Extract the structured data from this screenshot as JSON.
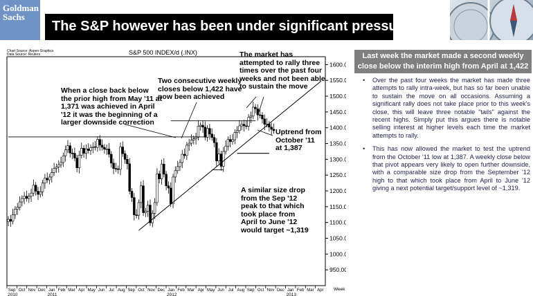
{
  "logo": {
    "line1": "Goldman",
    "line2": "Sachs"
  },
  "slide_title": "The S&P however has been under significant pressure…",
  "panel": {
    "header": "Last week the market made a second weekly close below the interim high from April at 1,422",
    "bullets": [
      "Over the past four weeks the market has made three attempts to rally intra-week, but has so far been unable to sustain the move on all occasions. Assuming a significant rally does not take place prior to this week's close, this will leave three notable \"tails\" against the recent highs. Simply put this argues there is notable selling interest at higher levels each time the market attempts to rally.",
      "This has now allowed the market to test the uptrend from the October '11 low at 1,387. A weekly close below that pivot appears very likely to open further downside, with a comparable size drop from the September '12 high to that which took place from April to June '12 giving a next potential target/support level of ~1,319."
    ]
  },
  "chart_data": {
    "type": "candlestick",
    "title": "S&P 500 INDEX/d (.INX)",
    "source_lines": [
      "Chart Source: Aspen Graphics",
      "Data Source: Reuters"
    ],
    "frequency_label": "Week",
    "ylim": [
      900,
      1625
    ],
    "y_ticks": [
      950,
      1000,
      1050,
      1100,
      1150,
      1200,
      1250,
      1300,
      1350,
      1400,
      1450,
      1500,
      1550,
      1600
    ],
    "y_tick_labels": [
      "950.00",
      "1000.00",
      "1050.00",
      "1100.00",
      "1150.00",
      "1200.00",
      "1250.00",
      "1300.00",
      "1350.00",
      "1400.00",
      "1450.00",
      "1500.00",
      "1550.00",
      "1600.00"
    ],
    "x_months": [
      "Sep",
      "Oct",
      "Nov",
      "Dec",
      "Jan",
      "Feb",
      "Mar",
      "Apr",
      "May",
      "Jun",
      "Jul",
      "Aug",
      "Sep",
      "Oct",
      "Nov",
      "Dec",
      "Jan",
      "Feb",
      "Mar",
      "Apr",
      "May",
      "Jun",
      "Jul",
      "Aug",
      "Sep",
      "Oct",
      "Nov",
      "Dec",
      "Jan",
      "Feb",
      "Mar",
      "Apr"
    ],
    "x_years": [
      {
        "label": "2010",
        "month_index": 0
      },
      {
        "label": "2011",
        "month_index": 4
      },
      {
        "label": "2012",
        "month_index": 16
      },
      {
        "label": "2013",
        "month_index": 28
      }
    ],
    "week0": "2010-09-03",
    "closes": [
      1110,
      1104,
      1125,
      1142,
      1148,
      1165,
      1176,
      1183,
      1176,
      1183,
      1193,
      1218,
      1199,
      1189,
      1197,
      1225,
      1240,
      1235,
      1244,
      1258,
      1271,
      1276,
      1283,
      1290,
      1311,
      1330,
      1343,
      1320,
      1319,
      1304,
      1273,
      1313,
      1335,
      1319,
      1333,
      1328,
      1337,
      1340,
      1338,
      1363,
      1345,
      1338,
      1332,
      1333,
      1316,
      1288,
      1271,
      1270,
      1268,
      1339,
      1318,
      1300,
      1286,
      1199,
      1179,
      1124,
      1123,
      1163,
      1216,
      1131,
      1136,
      1155,
      1099,
      1129,
      1163,
      1254,
      1238,
      1285,
      1253,
      1216,
      1209,
      1159,
      1244,
      1264,
      1277,
      1290,
      1316,
      1312,
      1345,
      1351,
      1361,
      1365,
      1370,
      1405,
      1408,
      1402,
      1370,
      1398,
      1380,
      1369,
      1353,
      1295,
      1317,
      1278,
      1325,
      1342,
      1363,
      1356,
      1362,
      1385,
      1391,
      1406,
      1411,
      1406,
      1405,
      1433,
      1437,
      1465,
      1460,
      1441,
      1440,
      1428,
      1411,
      1412,
      1402,
      1395,
      1391
    ],
    "annotations": [
      {
        "lines": [
          "When a close back below",
          "the prior high from May '11 at",
          "1,371 was achieved in April",
          "'12 it was the beginning of a",
          "larger downside correction"
        ]
      },
      {
        "lines": [
          "Two consecutive weekly",
          "closes below 1,422 have",
          "now been achieved"
        ]
      },
      {
        "lines": [
          "The market has",
          "attempted to rally three",
          "times over the past four",
          "weeks and not been able",
          "to sustain the move"
        ]
      },
      {
        "lines": [
          "Uptrend from",
          "October '11",
          "at 1,387"
        ]
      },
      {
        "lines": [
          "A similar size drop",
          "from the Sep '12",
          "peak to that which",
          "took place from",
          "April to June '12",
          "would target ~1,319"
        ]
      }
    ],
    "levels": {
      "may11_high": 1371,
      "apr12_level": 1422,
      "target": 1319,
      "apr12_low": 1267
    }
  }
}
